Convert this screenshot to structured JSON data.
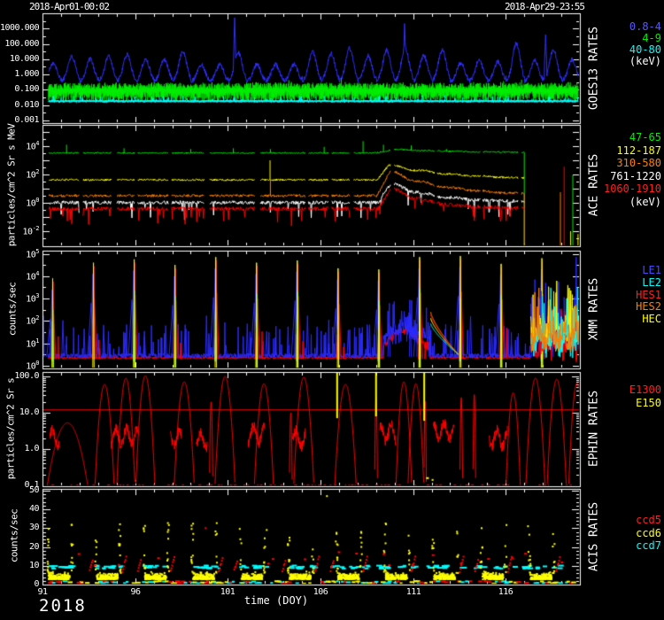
{
  "header": {
    "start_datetime": "2018-Apr01-00:02",
    "end_datetime": "2018-Apr29-23:55"
  },
  "x_axis": {
    "label": "time (DOY)",
    "year": "2018",
    "ticks": [
      91,
      96,
      101,
      106,
      111,
      116
    ],
    "range": [
      91,
      120
    ]
  },
  "chart_data": [
    {
      "type": "line",
      "title": "GOES13 RATES",
      "ylabel": "",
      "yscale": "log",
      "ylim": [
        0.001,
        10000
      ],
      "yticks": [
        {
          "label": "1000.000",
          "v": 1000
        },
        {
          "label": "100.000",
          "v": 100
        },
        {
          "label": "10.000",
          "v": 10
        },
        {
          "label": "1.000",
          "v": 1
        },
        {
          "label": "0.100",
          "v": 0.1
        },
        {
          "label": "0.010",
          "v": 0.01
        },
        {
          "label": "0.001",
          "v": 0.001
        }
      ],
      "legend": [
        {
          "label": "0.8-4",
          "color": "#5858ff"
        },
        {
          "label": "4-9",
          "color": "#00ee00"
        },
        {
          "label": "40-80",
          "color": "#00ffff"
        },
        {
          "label": "(keV)",
          "color": "#ffffff"
        }
      ],
      "series": [
        {
          "name": "0.8-4 keV",
          "color": "#2f2fff",
          "kind": "diurnal",
          "base_log": -0.45,
          "peak_log_range": [
            0.9,
            2.1
          ],
          "spikes": [
            {
              "t": 101.37,
              "log": 3.9
            },
            {
              "t": 110.54,
              "log": 3.5
            },
            {
              "t": 118.15,
              "log": 2.6
            }
          ]
        },
        {
          "name": "4-9 keV",
          "color": "#00ee00",
          "kind": "hashband",
          "center_log": -1.05,
          "spread_log": 0.45
        },
        {
          "name": "40-80 keV",
          "color": "#00ffff",
          "kind": "tightband",
          "center_log": -1.74,
          "spread_log": 0.08
        }
      ]
    },
    {
      "type": "line",
      "title": "ACE RATES",
      "ylabel": "particles/cm^2 Sr s MeV",
      "yscale": "log",
      "ylim": [
        0.001,
        300000
      ],
      "yticks": [
        {
          "label": "10",
          "exp": "4",
          "v": 10000
        },
        {
          "label": "10",
          "exp": "2",
          "v": 100
        },
        {
          "label": "10",
          "exp": "0",
          "v": 1
        },
        {
          "label": "10",
          "exp": "-2",
          "v": 0.01
        }
      ],
      "legend": [
        {
          "label": "47-65",
          "color": "#00ee00"
        },
        {
          "label": "112-187",
          "color": "#ffff00"
        },
        {
          "label": "310-580",
          "color": "#ff8000"
        },
        {
          "label": "761-1220",
          "color": "#ffffff"
        },
        {
          "label": "1060-1910",
          "color": "#ff2020"
        },
        {
          "label": "(keV)",
          "color": "#ffffff"
        }
      ],
      "data_end": 117.0,
      "series": [
        {
          "name": "47-65 keV",
          "color": "#00ee00",
          "kind": "segline",
          "base_log": 3.52,
          "noise": 0.05,
          "event": {
            "t0": 109.0,
            "tp": 110.0,
            "amp": 0.25,
            "tau": 4.0
          },
          "spikes": [
            {
              "t": 92.3,
              "log": 4.1
            },
            {
              "t": 95.4,
              "log": 3.85
            },
            {
              "t": 99.0,
              "log": 3.8
            },
            {
              "t": 101.3,
              "log": 3.85
            },
            {
              "t": 103.3,
              "log": 3.8
            },
            {
              "t": 106.2,
              "log": 3.95
            },
            {
              "t": 108.3,
              "log": 4.35
            },
            {
              "t": 109.4,
              "log": 4.1
            },
            {
              "t": 110.9,
              "log": 4.05
            },
            {
              "t": 112.8,
              "log": 3.8
            }
          ],
          "drop_at_end": true
        },
        {
          "name": "112-187 keV",
          "color": "#ffff00",
          "kind": "segline",
          "base_log": 1.62,
          "noise": 0.07,
          "event": {
            "t0": 109.05,
            "tp": 109.7,
            "amp": 1.05,
            "tau": 3.5
          },
          "spikes": [
            {
              "t": 103.28,
              "log": 3.0
            }
          ]
        },
        {
          "name": "310-580 keV",
          "color": "#ff8000",
          "kind": "segline",
          "base_log": 0.5,
          "noise": 0.09,
          "event": {
            "t0": 109.05,
            "tp": 109.75,
            "amp": 1.7,
            "tau": 3.0
          },
          "spikes": [
            {
              "t": 103.3,
              "log": 1.6
            }
          ],
          "drop_at_end": true
        },
        {
          "name": "761-1220 keV",
          "color": "#ffffff",
          "kind": "segline",
          "base_log": 0.02,
          "noise": 0.12,
          "event": {
            "t0": 109.1,
            "tp": 109.8,
            "amp": 1.35,
            "tau": 2.4
          },
          "dips": true
        },
        {
          "name": "1060-1910 keV",
          "color": "#ff0000",
          "kind": "segline",
          "base_log": -0.42,
          "noise": 0.14,
          "event": {
            "t0": 109.1,
            "tp": 109.8,
            "amp": 1.45,
            "tau": 2.0
          },
          "dips": true
        }
      ],
      "post_spikes": [
        {
          "t": 118.95,
          "color": "#ff8000",
          "log": 0.75
        },
        {
          "t": 119.15,
          "color": "#ff0000",
          "log": 2.55
        },
        {
          "t": 119.5,
          "color": "#ffff00",
          "log": -2.0
        },
        {
          "t": 119.62,
          "color": "#00ee00",
          "log": 1.95
        },
        {
          "t": 119.9,
          "color": "#ffff00",
          "log": -2.2
        },
        {
          "t": 119.98,
          "color": "#ff0000",
          "log": 3.5
        }
      ]
    },
    {
      "type": "line",
      "title": "XMM RATES",
      "ylabel": "counts/sec",
      "yscale": "log",
      "ylim": [
        1,
        140000
      ],
      "yticks": [
        {
          "label": "10",
          "exp": "5",
          "v": 100000
        },
        {
          "label": "10",
          "exp": "4",
          "v": 10000
        },
        {
          "label": "10",
          "exp": "3",
          "v": 1000
        },
        {
          "label": "10",
          "exp": "2",
          "v": 100
        },
        {
          "label": "10",
          "exp": "1",
          "v": 10
        },
        {
          "label": "10",
          "exp": "0",
          "v": 1
        }
      ],
      "legend": [
        {
          "label": "LE1",
          "color": "#4848ff"
        },
        {
          "label": "LE2",
          "color": "#00ffff"
        },
        {
          "label": "HES1",
          "color": "#ff2020"
        },
        {
          "label": "HES2",
          "color": "#ff8000"
        },
        {
          "label": "HEC",
          "color": "#ffff00"
        }
      ],
      "series": [
        {
          "name": "LE1",
          "color": "#2a2aff",
          "role": "le1",
          "base_log": 0.45
        },
        {
          "name": "LE2",
          "color": "#00ffff",
          "role": "le2"
        },
        {
          "name": "HES1",
          "color": "#ff0000",
          "role": "hes1",
          "base_log": 0.36
        },
        {
          "name": "HES2",
          "color": "#ff8000",
          "role": "hes2"
        },
        {
          "name": "HEC",
          "color": "#ffff00",
          "role": "hec"
        }
      ],
      "orbit_peaks": [
        {
          "t": 91.55,
          "h": 3.9
        },
        {
          "t": 93.75,
          "h": 4.6
        },
        {
          "t": 95.95,
          "h": 4.75
        },
        {
          "t": 98.15,
          "h": 4.5
        },
        {
          "t": 100.35,
          "h": 4.85
        },
        {
          "t": 102.55,
          "h": 4.6
        },
        {
          "t": 104.75,
          "h": 4.7
        },
        {
          "t": 106.95,
          "h": 4.35
        },
        {
          "t": 109.15,
          "h": 4.3
        },
        {
          "t": 111.35,
          "h": 4.85
        },
        {
          "t": 113.55,
          "h": 4.9
        },
        {
          "t": 115.75,
          "h": 4.55
        },
        {
          "t": 117.95,
          "h": 4.8
        }
      ],
      "event_window": [
        109.4,
        111.9
      ],
      "decay_fan": {
        "t0": 111.95,
        "t1": 113.45,
        "end_log": 0.5,
        "curves": [
          {
            "color": "#ff8000",
            "start_log": 2.4
          },
          {
            "color": "#ff0000",
            "start_log": 2.28
          },
          {
            "color": "#ffff00",
            "start_log": 2.12
          },
          {
            "color": "#00ffff",
            "start_log": 1.88
          }
        ]
      },
      "end_mess": {
        "t0": 117.35,
        "t1": 119.95,
        "series": [
          {
            "color": "#2a2aff",
            "center_log": 1.4,
            "spikes": [
              {
                "t": 118.75,
                "log": 3.3
              },
              {
                "t": 119.8,
                "log": 4.85
              }
            ]
          },
          {
            "color": "#ff0000",
            "center_log": 0.95,
            "spikes": [
              {
                "t": 119.55,
                "log": 2.5
              }
            ]
          },
          {
            "color": "#ffff00",
            "center_log": 1.6,
            "spikes": [
              {
                "t": 118.3,
                "log": 2.9
              },
              {
                "t": 119.35,
                "log": 3.6
              }
            ]
          },
          {
            "color": "#00ffff",
            "center_log": 1.1,
            "spikes": [
              {
                "t": 119.0,
                "log": 2.2
              }
            ]
          },
          {
            "color": "#ff8000",
            "center_log": 1.3,
            "spikes": []
          }
        ]
      }
    },
    {
      "type": "line",
      "title": "EPHIN RATES",
      "ylabel": "particles/cm^2 Sr s",
      "yscale": "log",
      "ylim": [
        0.1,
        130
      ],
      "yticks": [
        {
          "label": "100.0",
          "v": 100
        },
        {
          "label": "10.0",
          "v": 10
        },
        {
          "label": "1.0",
          "v": 1
        },
        {
          "label": "0.1",
          "v": 0.1
        }
      ],
      "legend": [
        {
          "label": "E1300",
          "color": "#ff2020"
        },
        {
          "label": "E150",
          "color": "#ffff00"
        }
      ],
      "series": [
        {
          "name": "E1300",
          "color": "#ff0000",
          "kind": "arcs"
        },
        {
          "name": "E150",
          "color": "#ffff00",
          "kind": "vspikes"
        }
      ],
      "threshold": {
        "v": 12,
        "color": "#ff0000"
      },
      "arcs": [
        {
          "t": 92.35,
          "h": 0.72,
          "w": 0.85
        },
        {
          "t": 94.35,
          "h": 1.78,
          "w": 0.4
        },
        {
          "t": 95.5,
          "h": 1.95,
          "w": 0.38
        },
        {
          "t": 96.55,
          "h": 2.02,
          "w": 0.4
        },
        {
          "t": 98.65,
          "h": 1.85,
          "w": 0.42
        },
        {
          "t": 100.1,
          "h": 1.3,
          "w": 0.07
        },
        {
          "t": 100.85,
          "h": 2.0,
          "w": 0.42
        },
        {
          "t": 102.95,
          "h": 1.8,
          "w": 0.4
        },
        {
          "t": 104.4,
          "h": 1.0,
          "w": 0.06
        },
        {
          "t": 105.1,
          "h": 1.98,
          "w": 0.42
        },
        {
          "t": 107.35,
          "h": 1.78,
          "w": 0.45
        },
        {
          "t": 109.0,
          "h": 1.45,
          "w": 0.06
        },
        {
          "t": 110.5,
          "h": 1.85,
          "w": 0.33
        },
        {
          "t": 111.15,
          "h": 1.8,
          "w": 0.33
        },
        {
          "t": 111.65,
          "h": 1.32,
          "w": 0.05
        },
        {
          "t": 113.6,
          "h": 1.42,
          "w": 0.06
        },
        {
          "t": 114.3,
          "h": 1.5,
          "w": 0.06
        },
        {
          "t": 116.4,
          "h": 1.55,
          "w": 0.3
        },
        {
          "t": 117.6,
          "h": 1.95,
          "w": 0.4
        },
        {
          "t": 118.75,
          "h": 1.92,
          "w": 0.4
        },
        {
          "t": 119.85,
          "h": 1.82,
          "w": 0.35
        }
      ],
      "low_bumps": [
        {
          "t0": 91.4,
          "t1": 91.9,
          "log": 0.3
        },
        {
          "t0": 94.7,
          "t1": 96.2,
          "log": 0.35
        },
        {
          "t0": 97.9,
          "t1": 98.5,
          "log": 0.3
        },
        {
          "t0": 99.3,
          "t1": 99.9,
          "log": 0.25
        },
        {
          "t0": 102.1,
          "t1": 103.0,
          "log": 0.4
        },
        {
          "t0": 104.5,
          "t1": 105.2,
          "log": 0.3
        },
        {
          "t0": 109.2,
          "t1": 110.1,
          "log": 0.45
        },
        {
          "t0": 112.1,
          "t1": 113.2,
          "log": 0.5
        },
        {
          "t0": 115.1,
          "t1": 116.1,
          "log": 0.3
        }
      ],
      "e150_spikes": [
        {
          "t": 106.9,
          "lo_log": 0.85,
          "hi_log": 2.3
        },
        {
          "t": 109.0,
          "lo_log": 0.9,
          "hi_log": 2.3
        },
        {
          "t": 111.6,
          "lo_log": 0.78,
          "hi_log": 2.3
        }
      ],
      "e150_dashes": [
        {
          "t0": 111.7,
          "t1": 111.85,
          "log": -0.8
        },
        {
          "t0": 112.0,
          "t1": 112.1,
          "log": -0.85
        }
      ]
    },
    {
      "type": "scatter",
      "title": "ACIS RATES",
      "ylabel": "counts/sec",
      "yscale": "linear",
      "ylim": [
        0,
        51
      ],
      "yticks": [
        {
          "label": "50",
          "v": 50
        },
        {
          "label": "40",
          "v": 40
        },
        {
          "label": "30",
          "v": 30
        },
        {
          "label": "20",
          "v": 20
        },
        {
          "label": "10",
          "v": 10
        },
        {
          "label": "0",
          "v": 0
        }
      ],
      "legend": [
        {
          "label": "ccd5",
          "color": "#ff2020"
        },
        {
          "label": "ccd6",
          "color": "#ffff00"
        },
        {
          "label": "ccd7",
          "color": "#00ffff"
        }
      ],
      "series": [
        {
          "name": "ccd5",
          "color": "#ff0000",
          "role": "ccd5"
        },
        {
          "name": "ccd6",
          "color": "#ffff00",
          "role": "ccd6"
        },
        {
          "name": "ccd7",
          "color": "#00ffff",
          "role": "ccd7"
        }
      ],
      "orbits": {
        "t0": 91.9,
        "period": 2.6,
        "count": 12
      },
      "bands": {
        "ccd7_level": 9.3,
        "ccd6_level": 4.5
      },
      "outliers": [
        {
          "t": 99.8,
          "v": 30,
          "color": "#ff0000"
        },
        {
          "t": 103.1,
          "v": 29,
          "color": "#ffff00"
        },
        {
          "t": 106.35,
          "v": 47,
          "color": "#ffff00"
        },
        {
          "t": 117.2,
          "v": 31,
          "color": "#ffff00"
        }
      ]
    }
  ]
}
